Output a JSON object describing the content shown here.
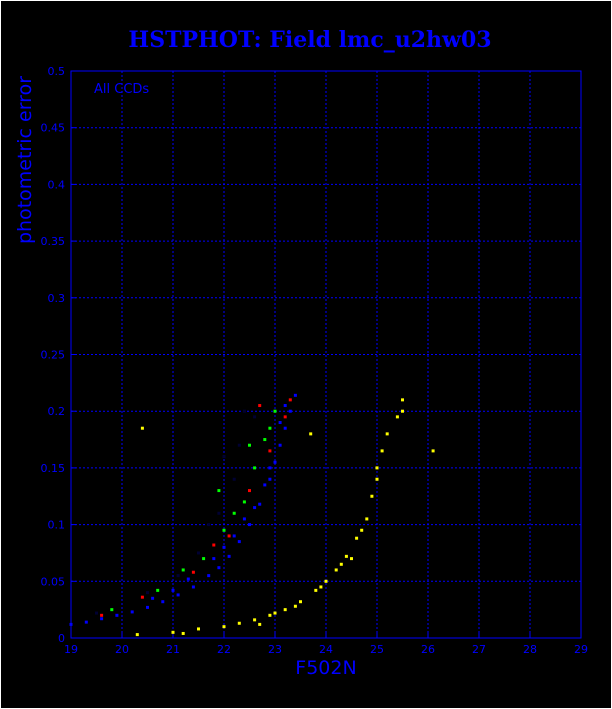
{
  "chart_data": {
    "type": "scatter",
    "title": "HSTPHOT: Field lmc_u2hw03",
    "xlabel": "F502N",
    "ylabel": "photometric error",
    "annotation": "All CCDs",
    "xlim": [
      19,
      29
    ],
    "ylim": [
      0,
      0.5
    ],
    "x_ticks": [
      "19",
      "20",
      "21",
      "22",
      "23",
      "24",
      "25",
      "26",
      "27",
      "28",
      "29"
    ],
    "y_ticks": [
      "0",
      "0.05",
      "0.1",
      "0.15",
      "0.2",
      "0.25",
      "0.3",
      "0.35",
      "0.4",
      "0.45",
      "0.5"
    ],
    "grid": true,
    "colors": {
      "background": "#000000",
      "axes": "#0000ff",
      "grid": "#0000ff"
    },
    "series": [
      {
        "color": "#0000ff",
        "points": [
          [
            19.0,
            0.012
          ],
          [
            19.3,
            0.014
          ],
          [
            19.6,
            0.017
          ],
          [
            19.9,
            0.02
          ],
          [
            20.2,
            0.023
          ],
          [
            20.5,
            0.027
          ],
          [
            20.8,
            0.032
          ],
          [
            21.1,
            0.038
          ],
          [
            21.4,
            0.045
          ],
          [
            21.7,
            0.055
          ],
          [
            21.9,
            0.062
          ],
          [
            22.1,
            0.072
          ],
          [
            22.3,
            0.085
          ],
          [
            22.5,
            0.1
          ],
          [
            22.7,
            0.118
          ],
          [
            22.9,
            0.14
          ],
          [
            23.0,
            0.155
          ],
          [
            23.1,
            0.17
          ],
          [
            23.2,
            0.185
          ],
          [
            23.3,
            0.2
          ],
          [
            23.4,
            0.214
          ],
          [
            20.6,
            0.035
          ],
          [
            21.3,
            0.052
          ],
          [
            21.8,
            0.07
          ],
          [
            22.2,
            0.09
          ],
          [
            22.6,
            0.115
          ],
          [
            22.9,
            0.15
          ],
          [
            23.1,
            0.19
          ],
          [
            21.0,
            0.042
          ],
          [
            22.0,
            0.08
          ],
          [
            22.4,
            0.105
          ],
          [
            22.8,
            0.135
          ],
          [
            23.2,
            0.205
          ]
        ]
      },
      {
        "color": "#00ff00",
        "points": [
          [
            19.8,
            0.025
          ],
          [
            20.7,
            0.042
          ],
          [
            21.6,
            0.07
          ],
          [
            22.0,
            0.095
          ],
          [
            22.4,
            0.12
          ],
          [
            22.6,
            0.15
          ],
          [
            22.8,
            0.175
          ],
          [
            23.0,
            0.2
          ],
          [
            21.2,
            0.06
          ],
          [
            22.2,
            0.11
          ],
          [
            22.9,
            0.185
          ],
          [
            21.9,
            0.13
          ],
          [
            22.5,
            0.17
          ]
        ]
      },
      {
        "color": "#ff0000",
        "points": [
          [
            19.6,
            0.02
          ],
          [
            20.4,
            0.036
          ],
          [
            21.4,
            0.058
          ],
          [
            22.1,
            0.09
          ],
          [
            22.5,
            0.13
          ],
          [
            22.9,
            0.165
          ],
          [
            23.2,
            0.195
          ],
          [
            21.8,
            0.082
          ],
          [
            22.7,
            0.205
          ],
          [
            23.3,
            0.21
          ]
        ]
      },
      {
        "color": "#000033",
        "points": [
          [
            19.5,
            0.022
          ],
          [
            20.5,
            0.04
          ],
          [
            21.1,
            0.055
          ],
          [
            21.5,
            0.075
          ],
          [
            21.9,
            0.11
          ],
          [
            22.2,
            0.14
          ],
          [
            22.3,
            0.17
          ],
          [
            22.6,
            0.195
          ],
          [
            21.7,
            0.1
          ],
          [
            22.0,
            0.16
          ],
          [
            22.4,
            0.2
          ]
        ]
      },
      {
        "color": "#ffff00",
        "points": [
          [
            21.0,
            0.005
          ],
          [
            21.5,
            0.008
          ],
          [
            22.0,
            0.01
          ],
          [
            22.3,
            0.013
          ],
          [
            22.6,
            0.016
          ],
          [
            22.9,
            0.02
          ],
          [
            23.2,
            0.025
          ],
          [
            23.5,
            0.032
          ],
          [
            23.8,
            0.042
          ],
          [
            24.0,
            0.05
          ],
          [
            24.2,
            0.06
          ],
          [
            24.4,
            0.072
          ],
          [
            24.6,
            0.088
          ],
          [
            24.8,
            0.105
          ],
          [
            24.9,
            0.125
          ],
          [
            25.0,
            0.15
          ],
          [
            25.1,
            0.165
          ],
          [
            25.2,
            0.18
          ],
          [
            25.4,
            0.195
          ],
          [
            25.5,
            0.21
          ],
          [
            22.7,
            0.012
          ],
          [
            23.4,
            0.028
          ],
          [
            23.9,
            0.045
          ],
          [
            24.3,
            0.065
          ],
          [
            24.7,
            0.095
          ],
          [
            25.0,
            0.14
          ],
          [
            26.1,
            0.165
          ],
          [
            20.3,
            0.003
          ],
          [
            21.2,
            0.004
          ],
          [
            20.4,
            0.185
          ],
          [
            23.7,
            0.18
          ],
          [
            25.5,
            0.2
          ],
          [
            24.5,
            0.07
          ],
          [
            23.0,
            0.022
          ]
        ]
      }
    ]
  }
}
